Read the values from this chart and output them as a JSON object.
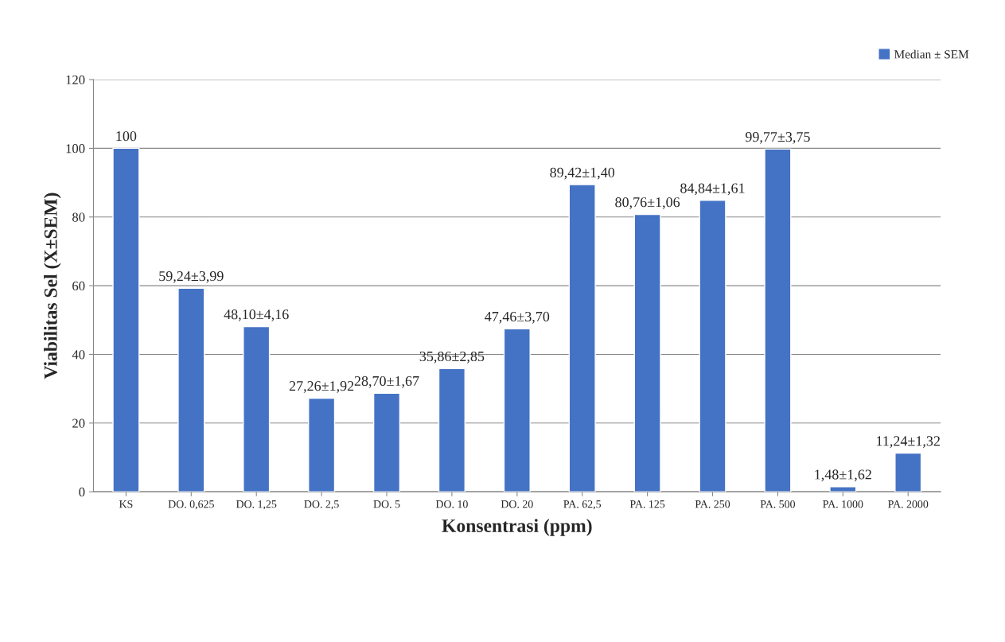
{
  "chart_data": {
    "type": "bar",
    "xlabel": "Konsentrasi (ppm)",
    "ylabel": "Viabilitas Sel (X±SEM)",
    "categories": [
      "KS",
      "DO. 0,625",
      "DO. 1,25",
      "DO. 2,5",
      "DO. 5",
      "DO. 10",
      "DO. 20",
      "PA. 62,5",
      "PA. 125",
      "PA. 250",
      "PA. 500",
      "PA. 1000",
      "PA. 2000"
    ],
    "series": [
      {
        "name": "Median ± SEM",
        "color": "#4472c4",
        "values": [
          100,
          59.24,
          48.1,
          27.26,
          28.7,
          35.86,
          47.46,
          89.42,
          80.76,
          84.84,
          99.77,
          1.48,
          11.24
        ],
        "value_labels": [
          "100",
          "59,24±3,99",
          "48,10±4,16",
          "27,26±1,92",
          "28,70±1,67",
          "35,86±2,85",
          "47,46±3,70",
          "89,42±1,40",
          "80,76±1,06",
          "84,84±1,61",
          "99,77±3,75",
          "1,48±1,62",
          "11,24±1,32"
        ]
      }
    ],
    "ylim": [
      0,
      120
    ],
    "yticks": [
      0,
      20,
      40,
      60,
      80,
      100,
      120
    ],
    "grid": "y",
    "legend": "top right"
  }
}
